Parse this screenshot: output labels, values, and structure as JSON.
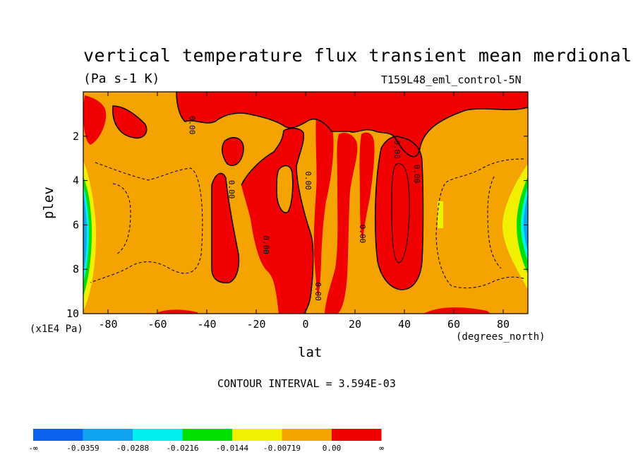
{
  "chart_data": {
    "type": "heatmap",
    "title": "vertical temperature flux transient mean merdional",
    "units_label": "(Pa s-1 K)",
    "run_label": "T159L48_eml_control-5N",
    "xlabel": "lat",
    "ylabel": "plev",
    "x_units": "(degrees_north)",
    "y_units": "(x1E4 Pa)",
    "x_ticks": [
      "-80",
      "-60",
      "-40",
      "-20",
      "0",
      "20",
      "40",
      "60",
      "80"
    ],
    "x_tick_values": [
      -80,
      -60,
      -40,
      -20,
      0,
      20,
      40,
      60,
      80
    ],
    "y_ticks": [
      "2",
      "4",
      "6",
      "8",
      "10"
    ],
    "y_tick_values": [
      2,
      4,
      6,
      8,
      10
    ],
    "xlim": [
      -90,
      90
    ],
    "ylim": [
      0,
      10
    ],
    "contour_interval": "CONTOUR INTERVAL = 3.594E-03",
    "colorbar": {
      "labels": [
        "-∞",
        "-0.0359",
        "-0.0288",
        "-0.0216",
        "-0.0144",
        "-0.00719",
        "0.00",
        "∞"
      ],
      "colors": [
        "#0a64f0",
        "#10a4f0",
        "#00f0f0",
        "#00e000",
        "#f0f000",
        "#f5a300",
        "#f00000"
      ]
    },
    "contour_labels": [
      {
        "text": "0.00",
        "lat": -47,
        "plev": 1.5
      },
      {
        "text": "0.00",
        "lat": -31,
        "plev": 4.4
      },
      {
        "text": "0.00",
        "lat": -17,
        "plev": 6.9
      },
      {
        "text": "0.00",
        "lat": 0,
        "plev": 4.0
      },
      {
        "text": "0.00",
        "lat": 4,
        "plev": 9.0
      },
      {
        "text": "0.00",
        "lat": 22,
        "plev": 6.4
      },
      {
        "text": "0.00",
        "lat": 36,
        "plev": 2.6
      },
      {
        "text": "0.00",
        "lat": 44,
        "plev": 3.7
      }
    ]
  }
}
